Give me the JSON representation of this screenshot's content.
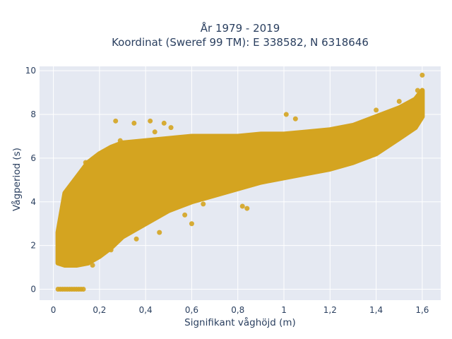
{
  "chart_data": {
    "type": "scatter",
    "title_line1": "År 1979 - 2019",
    "title_line2": "Koordinat (Sweref 99 TM): E 338582, N 6318646",
    "xlabel": "Signifikant våghöjd (m)",
    "ylabel": "Vågperiod (s)",
    "xlim": [
      -0.06,
      1.68
    ],
    "ylim": [
      -0.5,
      10.2
    ],
    "x_ticks": [
      0,
      0.2,
      0.4,
      0.6,
      0.8,
      1,
      1.2,
      1.4,
      1.6
    ],
    "x_tick_labels": [
      "0",
      "0,2",
      "0,4",
      "0,6",
      "0,8",
      "1",
      "1,2",
      "1,4",
      "1,6"
    ],
    "y_ticks": [
      0,
      2,
      4,
      6,
      8,
      10
    ],
    "y_tick_labels": [
      "0",
      "2",
      "4",
      "6",
      "8",
      "10"
    ],
    "grid": true,
    "legend": "none",
    "marker_color": "#d4a420",
    "background_color": "#e5e9f2",
    "gridline_color": "#ffffff",
    "band_envelope": {
      "x": [
        0.02,
        0.05,
        0.1,
        0.15,
        0.2,
        0.25,
        0.3,
        0.4,
        0.5,
        0.6,
        0.7,
        0.8,
        0.9,
        1.0,
        1.1,
        1.2,
        1.3,
        1.4,
        1.5,
        1.57,
        1.6
      ],
      "upper": [
        2.6,
        4.4,
        5.1,
        5.8,
        6.2,
        6.5,
        6.7,
        6.8,
        6.9,
        7.0,
        7.0,
        7.0,
        7.1,
        7.1,
        7.2,
        7.3,
        7.5,
        7.9,
        8.3,
        8.7,
        9.1
      ],
      "lower": [
        1.2,
        1.1,
        1.1,
        1.2,
        1.5,
        1.9,
        2.4,
        3.0,
        3.6,
        4.0,
        4.3,
        4.6,
        4.9,
        5.1,
        5.3,
        5.5,
        5.8,
        6.2,
        6.9,
        7.4,
        7.9
      ]
    },
    "zero_period_points": {
      "x": [
        0.02,
        0.03,
        0.04,
        0.05,
        0.06,
        0.07,
        0.08,
        0.09,
        0.1,
        0.11,
        0.12,
        0.13
      ],
      "y": [
        0,
        0,
        0,
        0,
        0,
        0,
        0,
        0,
        0,
        0,
        0,
        0
      ]
    },
    "outlier_points": {
      "x": [
        0.27,
        0.29,
        0.35,
        0.42,
        0.44,
        0.48,
        0.51,
        0.25,
        0.36,
        0.6,
        0.82,
        0.84,
        1.01,
        1.05,
        1.4,
        1.5,
        1.58,
        1.6,
        1.59,
        0.14,
        0.17,
        0.46,
        0.57,
        0.65
      ],
      "y": [
        7.7,
        6.8,
        7.6,
        7.7,
        7.2,
        7.6,
        7.4,
        1.8,
        2.3,
        3.0,
        3.8,
        3.7,
        8.0,
        7.8,
        8.2,
        8.6,
        9.1,
        9.8,
        8.9,
        5.8,
        1.1,
        2.6,
        3.4,
        3.9
      ]
    }
  }
}
